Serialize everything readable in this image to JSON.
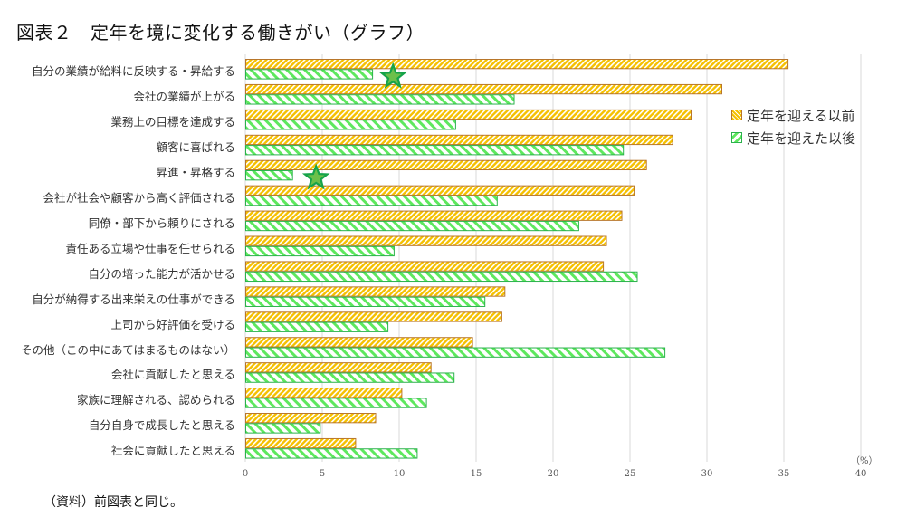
{
  "title": "図表２　定年を境に変化する働きがい（グラフ）",
  "footnote": "（資料）前図表と同じ。",
  "colors": {
    "before_fill": "#f5c000",
    "before_stripe": "#ffffff",
    "before_border": "#b8762a",
    "after_fill": "#5ee85e",
    "after_stripe": "#ffffff",
    "after_border": "#2bb24c",
    "grid": "#d9d9d9",
    "star_fill": "#6cc04a",
    "star_stroke": "#16a34a"
  },
  "chart_data": {
    "type": "bar",
    "orientation": "horizontal",
    "title": "図表２　定年を境に変化する働きがい（グラフ）",
    "xlabel": "",
    "ylabel": "",
    "unit_label": "（%）",
    "xlim": [
      0,
      40
    ],
    "xticks": [
      0,
      5,
      10,
      15,
      20,
      25,
      30,
      35,
      40
    ],
    "grid": true,
    "legend_position": "right",
    "categories": [
      "自分の業績が給料に反映する・昇給する",
      "会社の業績が上がる",
      "業務上の目標を達成する",
      "顧客に喜ばれる",
      "昇進・昇格する",
      "会社が社会や顧客から高く評価される",
      "同僚・部下から頼りにされる",
      "責任ある立場や仕事を任せられる",
      "自分の培った能力が活かせる",
      "自分が納得する出来栄えの仕事ができる",
      "上司から好評価を受ける",
      "その他（この中にあてはまるものはない）",
      "会社に貢献したと思える",
      "家族に理解される、認められる",
      "自分自身で成長したと思える",
      "社会に貢献したと思える"
    ],
    "series": [
      {
        "name": "定年を迎える以前",
        "values": [
          35.3,
          31.0,
          29.0,
          27.8,
          26.1,
          25.3,
          24.5,
          23.5,
          23.3,
          16.9,
          16.7,
          14.8,
          12.1,
          10.2,
          8.5,
          7.2
        ]
      },
      {
        "name": "定年を迎えた以後",
        "values": [
          8.3,
          17.5,
          13.7,
          24.6,
          3.1,
          16.4,
          21.7,
          9.7,
          25.5,
          15.6,
          9.3,
          27.3,
          13.6,
          11.8,
          4.9,
          11.2
        ]
      }
    ],
    "annotations": [
      {
        "type": "star",
        "category_index": 0,
        "value": 9.6
      },
      {
        "type": "star",
        "category_index": 4,
        "value": 4.6
      }
    ]
  }
}
